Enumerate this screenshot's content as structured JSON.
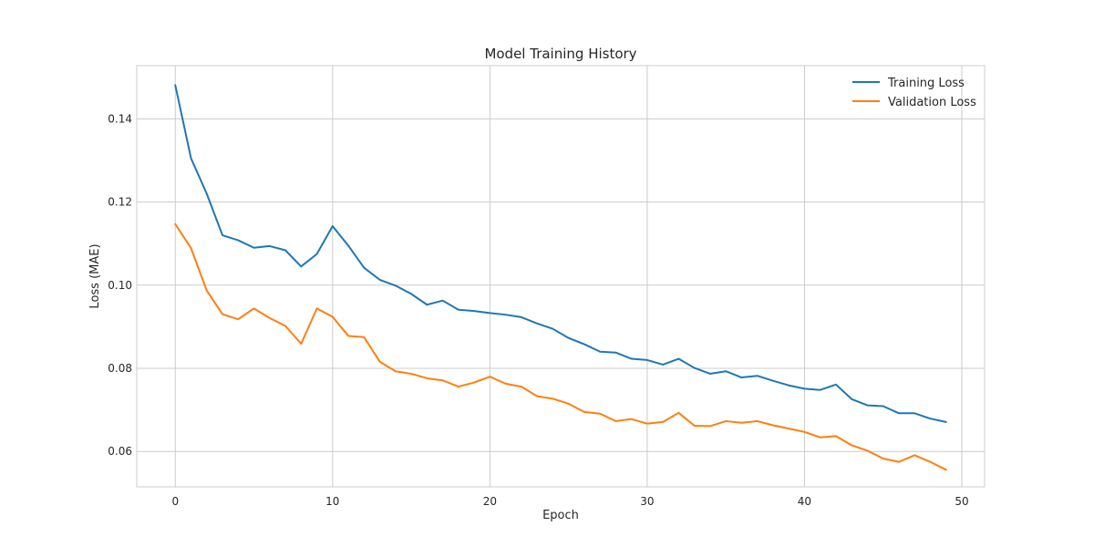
{
  "chart_data": {
    "type": "line",
    "title": "Model Training History",
    "xlabel": "Epoch",
    "ylabel": "Loss (MAE)",
    "xlim": [
      -2.45,
      51.45
    ],
    "ylim": [
      0.0515,
      0.1528
    ],
    "xticks": [
      0,
      10,
      20,
      30,
      40,
      50
    ],
    "yticks": [
      0.06,
      0.08,
      0.1,
      0.12,
      0.14
    ],
    "ytick_labels": [
      "0.06",
      "0.08",
      "0.10",
      "0.12",
      "0.14"
    ],
    "grid": true,
    "legend_position": "top-right",
    "x": [
      0,
      1,
      2,
      3,
      4,
      5,
      6,
      7,
      8,
      9,
      10,
      11,
      12,
      13,
      14,
      15,
      16,
      17,
      18,
      19,
      20,
      21,
      22,
      23,
      24,
      25,
      26,
      27,
      28,
      29,
      30,
      31,
      32,
      33,
      34,
      35,
      36,
      37,
      38,
      39,
      40,
      41,
      42,
      43,
      44,
      45,
      46,
      47,
      48,
      49
    ],
    "series": [
      {
        "name": "Training Loss",
        "color": "#1f77b4",
        "values": [
          0.1481,
          0.1305,
          0.122,
          0.112,
          0.1108,
          0.109,
          0.1094,
          0.1084,
          0.1045,
          0.1075,
          0.1142,
          0.1095,
          0.1042,
          0.1013,
          0.0999,
          0.0979,
          0.0953,
          0.0963,
          0.0941,
          0.0938,
          0.0933,
          0.0929,
          0.0923,
          0.0908,
          0.0895,
          0.0873,
          0.0858,
          0.084,
          0.0838,
          0.0823,
          0.082,
          0.0809,
          0.0823,
          0.0801,
          0.0787,
          0.0793,
          0.0778,
          0.0782,
          0.077,
          0.0759,
          0.0751,
          0.0748,
          0.0761,
          0.0726,
          0.0711,
          0.0709,
          0.0692,
          0.0692,
          0.0679,
          0.0671
        ]
      },
      {
        "name": "Validation Loss",
        "color": "#ff7f0e",
        "values": [
          0.1147,
          0.1089,
          0.0987,
          0.093,
          0.0918,
          0.0944,
          0.0921,
          0.0902,
          0.0859,
          0.0944,
          0.0924,
          0.0878,
          0.0875,
          0.0816,
          0.0793,
          0.0787,
          0.0776,
          0.0771,
          0.0756,
          0.0766,
          0.078,
          0.0763,
          0.0756,
          0.0733,
          0.0727,
          0.0715,
          0.0695,
          0.0691,
          0.0673,
          0.0678,
          0.0667,
          0.0671,
          0.0693,
          0.0662,
          0.0661,
          0.0673,
          0.0669,
          0.0673,
          0.0663,
          0.0655,
          0.0647,
          0.0634,
          0.0637,
          0.0615,
          0.0602,
          0.0583,
          0.0575,
          0.0591,
          0.0575,
          0.0556
        ]
      }
    ]
  }
}
